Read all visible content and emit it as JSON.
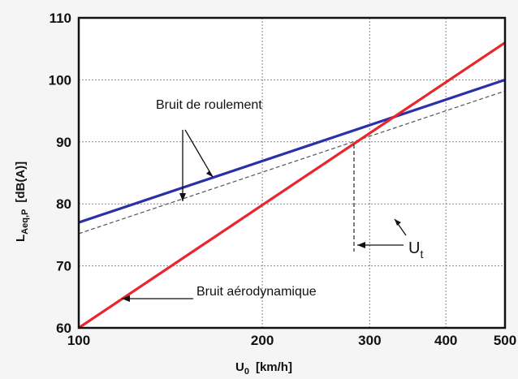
{
  "chart_data": {
    "type": "line",
    "x_scale": "log",
    "xlim": [
      100,
      500
    ],
    "ylim": [
      60,
      110
    ],
    "grid": true,
    "x_ticks": [
      "100",
      "200",
      "300",
      "400",
      "500"
    ],
    "x_tick_values": [
      100,
      200,
      300,
      400,
      500
    ],
    "y_ticks": [
      "60",
      "70",
      "80",
      "90",
      "100",
      "110"
    ],
    "y_tick_values": [
      60,
      70,
      80,
      90,
      100,
      110
    ],
    "ylabel": {
      "main": "L",
      "sub": "Aeq,P",
      "unit": "[dB(A)]"
    },
    "xlabel": {
      "main": "U",
      "sub": "0",
      "unit": "[km/h]"
    },
    "series": [
      {
        "name": "Bruit de roulement",
        "color": "#2d2fa8",
        "style": "solid",
        "x": [
          100,
          500
        ],
        "y": [
          77.0,
          100.0
        ]
      },
      {
        "color": "#555555",
        "style": "dashed",
        "x": [
          100,
          500
        ],
        "y": [
          75.2,
          98.2
        ]
      },
      {
        "name": "Bruit aérodynamique",
        "color": "#e8262b",
        "style": "solid",
        "x": [
          100,
          500
        ],
        "y": [
          60.0,
          106.0
        ]
      }
    ],
    "annotations": {
      "rolling": "Bruit de roulement",
      "aero": "Bruit aérodynamique",
      "ut_main": "U",
      "ut_sub": "t"
    }
  }
}
